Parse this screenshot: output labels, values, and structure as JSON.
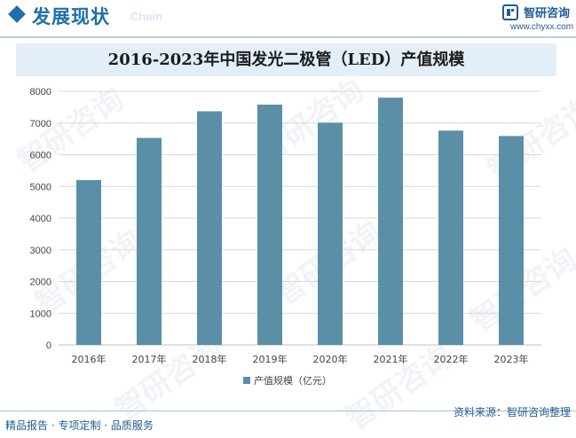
{
  "header": {
    "title": "发展现状",
    "subtitle": "Chain",
    "brand": "智研咨询",
    "url": "www.chyxx.com"
  },
  "watermark_text": "智研咨询",
  "colors": {
    "bar": "#5b8fa8",
    "accent": "#1f6fa8",
    "title_band": "#e4eef7",
    "grid": "#d9d9d9"
  },
  "chart_data": {
    "type": "bar",
    "title": "2016-2023年中国发光二极管（LED）产值规模",
    "categories": [
      "2016年",
      "2017年",
      "2018年",
      "2019年",
      "2020年",
      "2021年",
      "2022年",
      "2023年"
    ],
    "series": [
      {
        "name": "产值规模（亿元）",
        "values": [
          5200,
          6530,
          7370,
          7580,
          7010,
          7800,
          6760,
          6590
        ]
      }
    ],
    "ylim": [
      0,
      8000
    ],
    "yticks": [
      0,
      1000,
      2000,
      3000,
      4000,
      5000,
      6000,
      7000,
      8000
    ],
    "grid": true,
    "legend_position": "bottom"
  },
  "footer": {
    "left": "精品报告 · 专项定制 · 品质服务",
    "right": "资料来源：智研咨询整理"
  }
}
